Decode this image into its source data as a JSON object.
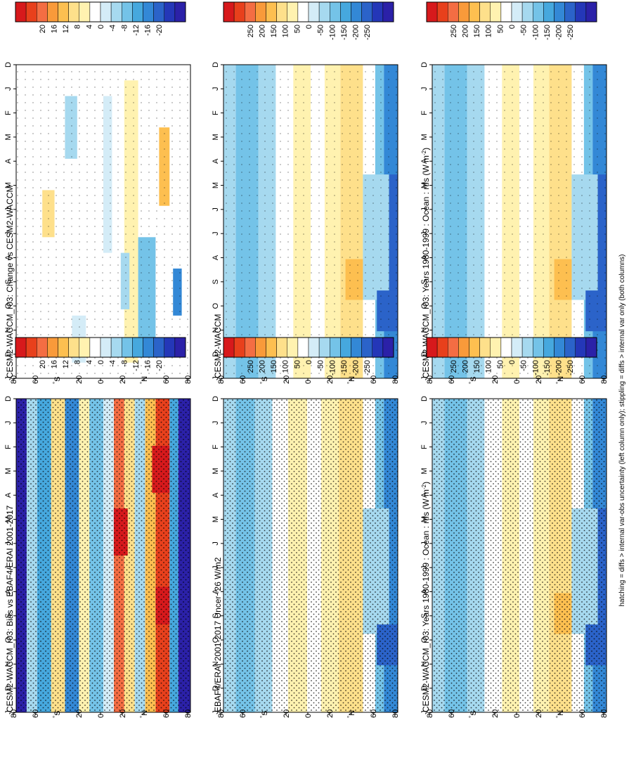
{
  "figure": {
    "footnote": "hatching = diffs > internal var-obs uncertainty (left column only); stippling = diffs > internal var only (both columns)"
  },
  "chart_data": [
    {
      "type": "heatmap",
      "id": "p00",
      "title": "CESM2-WACCM_r03: Years 1980-1999 : Ocean : rtfs (W m",
      "title_sup": "-2",
      "title_tail": ")",
      "x": [
        "D",
        "J",
        "F",
        "M",
        "A",
        "M",
        "J",
        "J",
        "A",
        "S",
        "O",
        "N",
        "D",
        "J"
      ],
      "y": [
        "80",
        "60",
        "N",
        "20",
        "0",
        "20",
        "S",
        "60",
        "80"
      ],
      "y_units": "latitude",
      "y_range": [
        -90,
        90
      ],
      "colorbar": {
        "ticks": [
          "250",
          "200",
          "150",
          "100",
          "50",
          "0",
          "-50",
          "-100",
          "-150",
          "-200",
          "-250"
        ],
        "colors": [
          "#d7191c",
          "#e8401c",
          "#f46d43",
          "#f99a3a",
          "#fdbf50",
          "#fee08b",
          "#fff2b0",
          "#ffffff",
          "#d4ecf7",
          "#a6d9ef",
          "#74c3e8",
          "#46a8de",
          "#3388d6",
          "#2b63c9",
          "#2437b8",
          "#2b21a8"
        ]
      }
    },
    {
      "type": "heatmap",
      "id": "p01",
      "title": "CESM2-WACCM",
      "x": [
        "D",
        "J",
        "F",
        "M",
        "A",
        "M",
        "J",
        "J",
        "A",
        "S",
        "O",
        "N",
        "D",
        "J"
      ],
      "y": [
        "80",
        "60",
        "N",
        "20",
        "0",
        "20",
        "S",
        "60",
        "80"
      ],
      "y_units": "latitude",
      "y_range": [
        -90,
        90
      ],
      "colorbar": {
        "ticks": [
          "250",
          "200",
          "150",
          "100",
          "50",
          "0",
          "-50",
          "-100",
          "-150",
          "-200",
          "-250"
        ],
        "colors": [
          "#d7191c",
          "#e8401c",
          "#f46d43",
          "#f99a3a",
          "#fdbf50",
          "#fee08b",
          "#fff2b0",
          "#ffffff",
          "#d4ecf7",
          "#a6d9ef",
          "#74c3e8",
          "#46a8de",
          "#3388d6",
          "#2b63c9",
          "#2437b8",
          "#2b21a8"
        ]
      }
    },
    {
      "type": "heatmap",
      "id": "p02",
      "title": "CESM2-WACCM_r03: Change vs CESM2-WACCM",
      "x": [
        "D",
        "J",
        "F",
        "M",
        "A",
        "M",
        "J",
        "J",
        "A",
        "S",
        "O",
        "N",
        "D",
        "J"
      ],
      "y": [
        "80",
        "60",
        "N",
        "20",
        "0",
        "20",
        "S",
        "60",
        "80"
      ],
      "y_units": "latitude",
      "y_range": [
        -90,
        90
      ],
      "colorbar": {
        "ticks": [
          "20",
          "16",
          "12",
          "8",
          "4",
          "0",
          "-4",
          "-8",
          "-12",
          "-16",
          "-20"
        ],
        "colors": [
          "#d7191c",
          "#e8401c",
          "#f46d43",
          "#f99a3a",
          "#fdbf50",
          "#fee08b",
          "#fff2b0",
          "#ffffff",
          "#d4ecf7",
          "#a6d9ef",
          "#74c3e8",
          "#46a8de",
          "#3388d6",
          "#2b63c9",
          "#2437b8",
          "#2b21a8"
        ]
      }
    },
    {
      "type": "heatmap",
      "id": "p10",
      "title": "CESM2-WACCM_r03: Years 1980-1999 : Ocean : rtfs (W m",
      "title_sup": "-2",
      "title_tail": ")",
      "x": [
        "D",
        "J",
        "F",
        "M",
        "A",
        "M",
        "J",
        "J",
        "A",
        "S",
        "O",
        "N",
        "D",
        "J"
      ],
      "y": [
        "80",
        "60",
        "N",
        "20",
        "0",
        "20",
        "S",
        "60",
        "80"
      ],
      "y_units": "latitude",
      "y_range": [
        -90,
        90
      ],
      "colorbar": {
        "ticks": [
          "250",
          "200",
          "150",
          "100",
          "50",
          "0",
          "-50",
          "-100",
          "-150",
          "-200",
          "-250"
        ],
        "colors": [
          "#d7191c",
          "#e8401c",
          "#f46d43",
          "#f99a3a",
          "#fdbf50",
          "#fee08b",
          "#fff2b0",
          "#ffffff",
          "#d4ecf7",
          "#a6d9ef",
          "#74c3e8",
          "#46a8de",
          "#3388d6",
          "#2b63c9",
          "#2437b8",
          "#2b21a8"
        ]
      }
    },
    {
      "type": "heatmap",
      "id": "p11",
      "title": "EBAF4/ERAI 2001-2017 Uncer~26 W/m2",
      "x": [
        "D",
        "J",
        "F",
        "M",
        "A",
        "M",
        "J",
        "J",
        "A",
        "S",
        "O",
        "N",
        "D",
        "J"
      ],
      "y": [
        "80",
        "60",
        "N",
        "20",
        "0",
        "20",
        "S",
        "60",
        "80"
      ],
      "y_units": "latitude",
      "y_range": [
        -90,
        90
      ],
      "colorbar": {
        "ticks": [
          "250",
          "200",
          "150",
          "100",
          "50",
          "0",
          "-50",
          "-100",
          "-150",
          "-200",
          "-250"
        ],
        "colors": [
          "#d7191c",
          "#e8401c",
          "#f46d43",
          "#f99a3a",
          "#fdbf50",
          "#fee08b",
          "#fff2b0",
          "#ffffff",
          "#d4ecf7",
          "#a6d9ef",
          "#74c3e8",
          "#46a8de",
          "#3388d6",
          "#2b63c9",
          "#2437b8",
          "#2b21a8"
        ]
      }
    },
    {
      "type": "heatmap",
      "id": "p12",
      "title": "CESM2-WACCM_r03: Bias vs EBAF4/ERAI 2001-2017",
      "x": [
        "D",
        "J",
        "F",
        "M",
        "A",
        "M",
        "J",
        "J",
        "A",
        "S",
        "O",
        "N",
        "D",
        "J"
      ],
      "y": [
        "80",
        "60",
        "N",
        "20",
        "0",
        "20",
        "S",
        "60",
        "80"
      ],
      "y_units": "latitude",
      "y_range": [
        -90,
        90
      ],
      "colorbar": {
        "ticks": [
          "20",
          "16",
          "12",
          "8",
          "4",
          "0",
          "-4",
          "-8",
          "-12",
          "-16",
          "-20"
        ],
        "colors": [
          "#d7191c",
          "#e8401c",
          "#f46d43",
          "#f99a3a",
          "#fdbf50",
          "#fee08b",
          "#fff2b0",
          "#ffffff",
          "#d4ecf7",
          "#a6d9ef",
          "#74c3e8",
          "#46a8de",
          "#3388d6",
          "#2b63c9",
          "#2437b8",
          "#2b21a8"
        ]
      }
    }
  ]
}
